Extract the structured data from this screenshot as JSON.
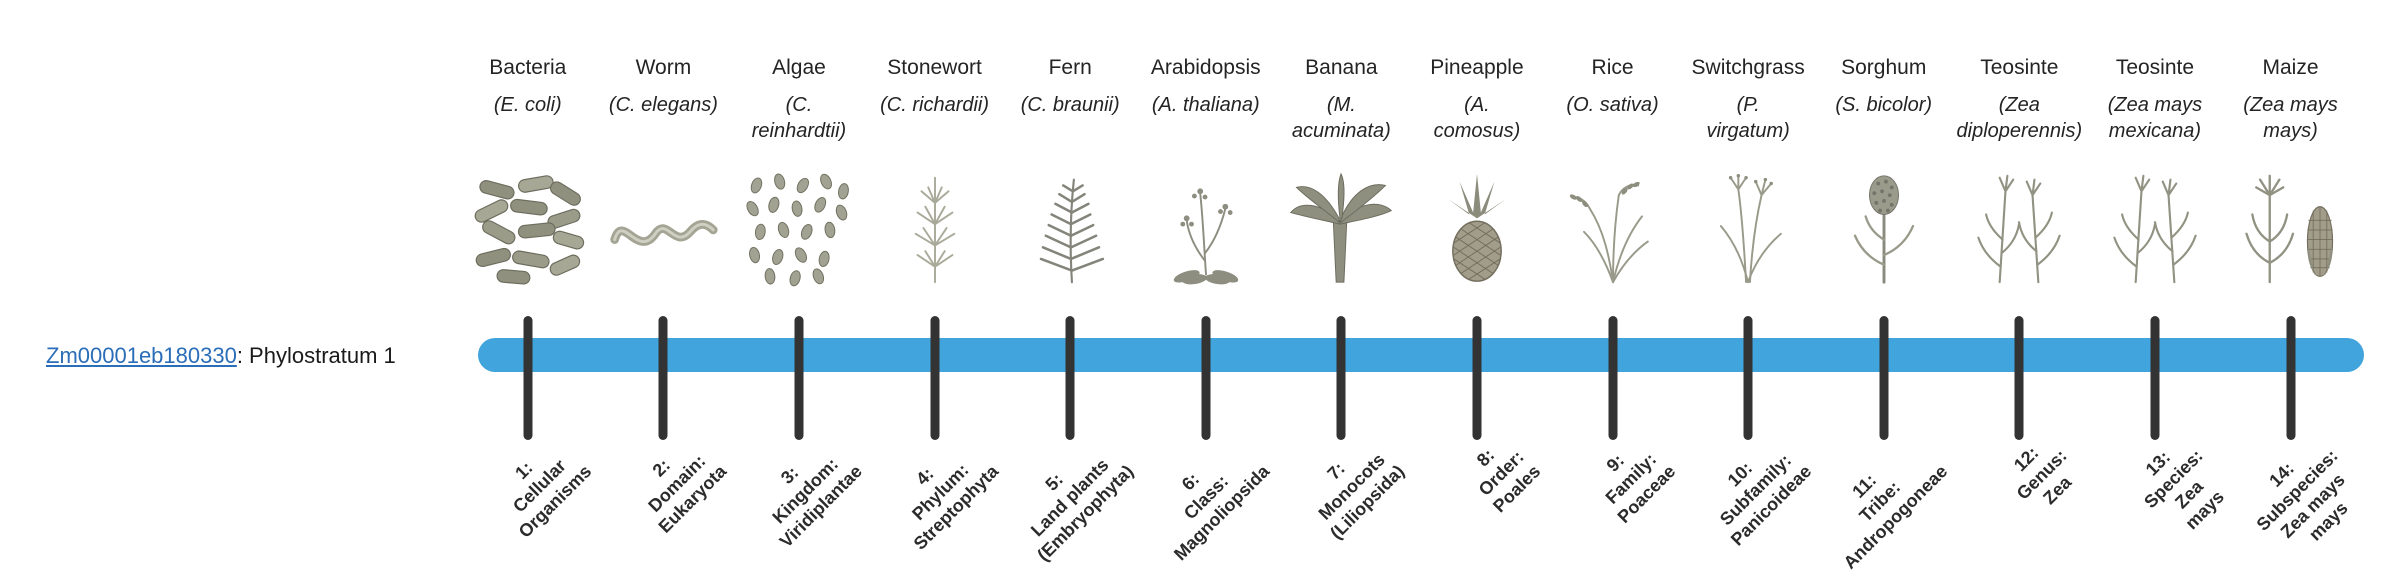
{
  "gene": {
    "id": "Zm00001eb180330",
    "suffix": ": Phylostratum 1"
  },
  "colors": {
    "bar": "#41a4dc",
    "tick": "#333333",
    "link": "#2a6db8"
  },
  "organisms": [
    {
      "common": "Bacteria",
      "sci": "(E. coli)",
      "icon": "bacteria-icon"
    },
    {
      "common": "Worm",
      "sci": "(C. elegans)",
      "icon": "worm-icon"
    },
    {
      "common": "Algae",
      "sci": "(C.\nreinhardtii)",
      "icon": "algae-icon"
    },
    {
      "common": "Stonewort",
      "sci": "(C. richardii)",
      "icon": "stonewort-icon"
    },
    {
      "common": "Fern",
      "sci": "(C. braunii)",
      "icon": "fern-icon"
    },
    {
      "common": "Arabidopsis",
      "sci": "(A. thaliana)",
      "icon": "arabidopsis-icon"
    },
    {
      "common": "Banana",
      "sci": "(M.\nacuminata)",
      "icon": "banana-icon"
    },
    {
      "common": "Pineapple",
      "sci": "(A.\ncomosus)",
      "icon": "pineapple-icon"
    },
    {
      "common": "Rice",
      "sci": "(O. sativa)",
      "icon": "rice-icon"
    },
    {
      "common": "Switchgrass",
      "sci": "(P.\nvirgatum)",
      "icon": "switchgrass-icon"
    },
    {
      "common": "Sorghum",
      "sci": "(S. bicolor)",
      "icon": "sorghum-icon"
    },
    {
      "common": "Teosinte",
      "sci": "(Zea\ndiploperennis)",
      "icon": "teosinte-icon"
    },
    {
      "common": "Teosinte",
      "sci": "(Zea mays\nmexicana)",
      "icon": "teosinte-icon"
    },
    {
      "common": "Maize",
      "sci": "(Zea mays\nmays)",
      "icon": "maize-icon"
    }
  ],
  "strata": [
    {
      "label": "1:\nCellular\nOrganisms"
    },
    {
      "label": "2:\nDomain:\nEukaryota"
    },
    {
      "label": "3:\nKingdom:\nViridiplantae"
    },
    {
      "label": "4:\nPhylum:\nStreptophyta"
    },
    {
      "label": "5:\nLand plants\n(Embryophyta)"
    },
    {
      "label": "6:\nClass:\nMagnoliopsida"
    },
    {
      "label": "7:\nMonocots\n(Liliopsida)"
    },
    {
      "label": "8:\nOrder:\nPoales"
    },
    {
      "label": "9:\nFamily:\nPoaceae"
    },
    {
      "label": "10:\nSubfamily:\nPanicoideae"
    },
    {
      "label": "11:\nTribe:\nAndropogoneae"
    },
    {
      "label": "12:\nGenus:\nZea"
    },
    {
      "label": "13:\nSpecies:\nZea\nmays"
    },
    {
      "label": "14:\nSubspecies:\nZea mays\nmays"
    }
  ]
}
